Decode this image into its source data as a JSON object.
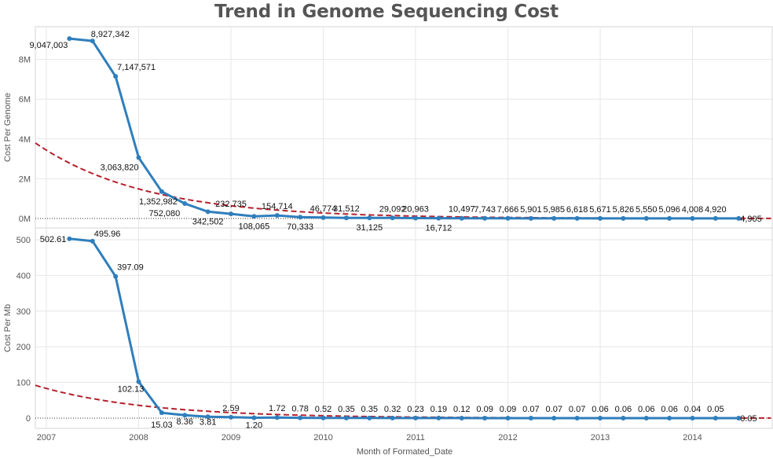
{
  "chart_data": {
    "type": "line",
    "title": "Trend in Genome Sequencing Cost",
    "xlabel": "Month of Formated_Date",
    "x_ticks": [
      "2007",
      "2008",
      "2009",
      "2010",
      "2011",
      "2012",
      "2013",
      "2014"
    ],
    "colors": {
      "series": "#2f7ebc",
      "trend": "#b5202b",
      "grid": "#e6e6e6"
    },
    "dates": [
      "2007-04",
      "2007-07",
      "2007-10",
      "2008-01",
      "2008-04",
      "2008-07",
      "2008-10",
      "2009-01",
      "2009-04",
      "2009-07",
      "2009-10",
      "2010-01",
      "2010-04",
      "2010-07",
      "2010-10",
      "2011-01",
      "2011-04",
      "2011-07",
      "2011-10",
      "2012-01",
      "2012-04",
      "2012-07",
      "2012-10",
      "2013-01",
      "2013-04",
      "2013-07",
      "2013-10",
      "2014-01",
      "2014-04",
      "2014-07"
    ],
    "panels": [
      {
        "ylabel": "Cost Per Genome",
        "ylim": [
          0,
          9600000
        ],
        "y_ticks": [
          0,
          2000000,
          4000000,
          6000000,
          8000000
        ],
        "y_tick_labels": [
          "0M",
          "2M",
          "4M",
          "6M",
          "8M"
        ],
        "values": [
          9047003,
          8927342,
          7147571,
          3063820,
          1352982,
          752080,
          342502,
          232735,
          108065,
          154714,
          70333,
          46774,
          31512,
          31125,
          29092,
          20963,
          16712,
          10497,
          7743,
          7666,
          5901,
          5985,
          6618,
          5671,
          5826,
          5550,
          5096,
          4008,
          4920,
          4905
        ],
        "labels": [
          "9,047,003",
          "8,927,342",
          "7,147,571",
          "3,063,820",
          "1,352,982",
          "752,080",
          "342,502",
          "232,735",
          "108,065",
          "154,714",
          "70,333",
          "46,774",
          "31,512",
          "31,125",
          "29,092",
          "20,963",
          "16,712",
          "10,497",
          "7,743",
          "7,666",
          "5,901",
          "5,985",
          "6,618",
          "5,671",
          "5,826",
          "5,550",
          "5,096",
          "4,008",
          "4,920",
          "4,905"
        ],
        "trend_start_value": 3800000
      },
      {
        "ylabel": "Cost Per Mb",
        "ylim": [
          0,
          520
        ],
        "y_ticks": [
          0,
          100,
          200,
          300,
          400,
          500
        ],
        "y_tick_labels": [
          "0",
          "100",
          "200",
          "300",
          "400",
          "500"
        ],
        "values": [
          502.61,
          495.96,
          397.09,
          102.13,
          15.03,
          8.36,
          3.81,
          2.59,
          1.2,
          1.72,
          0.78,
          0.52,
          0.35,
          0.35,
          0.32,
          0.23,
          0.19,
          0.12,
          0.09,
          0.09,
          0.07,
          0.07,
          0.07,
          0.06,
          0.06,
          0.06,
          0.06,
          0.04,
          0.05,
          0.05
        ],
        "labels": [
          "502.61",
          "495.96",
          "397.09",
          "102.13",
          "15.03",
          "8.36",
          "3.81",
          "2.59",
          "1.20",
          "1.72",
          "0.78",
          "0.52",
          "0.35",
          "0.35",
          "0.32",
          "0.23",
          "0.19",
          "0.12",
          "0.09",
          "0.09",
          "0.07",
          "0.07",
          "0.07",
          "0.06",
          "0.06",
          "0.06",
          "0.06",
          "0.04",
          "0.05",
          "0.05"
        ],
        "trend_start_value": 92
      }
    ]
  }
}
